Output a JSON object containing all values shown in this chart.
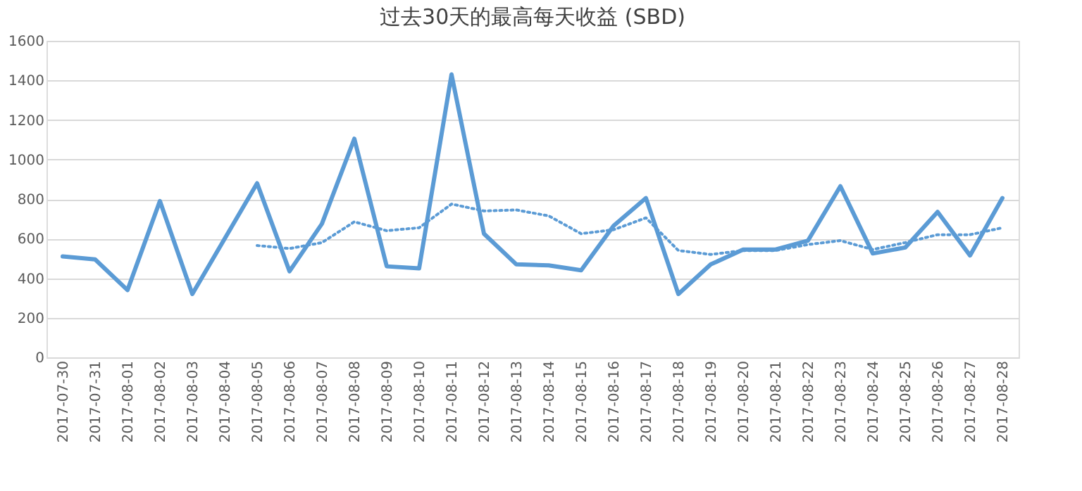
{
  "chart_data": {
    "type": "line",
    "title": "过去30天的最高每天收益 (SBD)",
    "categories": [
      "2017-07-30",
      "2017-07-31",
      "2017-08-01",
      "2017-08-02",
      "2017-08-03",
      "2017-08-04",
      "2017-08-05",
      "2017-08-06",
      "2017-08-07",
      "2017-08-08",
      "2017-08-09",
      "2017-08-10",
      "2017-08-11",
      "2017-08-12",
      "2017-08-13",
      "2017-08-14",
      "2017-08-15",
      "2017-08-16",
      "2017-08-17",
      "2017-08-18",
      "2017-08-19",
      "2017-08-20",
      "2017-08-21",
      "2017-08-22",
      "2017-08-23",
      "2017-08-24",
      "2017-08-25",
      "2017-08-26",
      "2017-08-27",
      "2017-08-28"
    ],
    "series": [
      {
        "color": "#5b9bd5",
        "line_style": "solid",
        "values": [
          510,
          495,
          340,
          790,
          320,
          600,
          880,
          435,
          675,
          1105,
          460,
          450,
          1430,
          625,
          470,
          465,
          440,
          665,
          805,
          320,
          470,
          545,
          545,
          590,
          865,
          525,
          555,
          735,
          515,
          805
        ]
      },
      {
        "color": "#5b9bd5",
        "line_style": "dotted",
        "values": [
          null,
          null,
          null,
          null,
          null,
          null,
          565,
          550,
          580,
          685,
          640,
          655,
          775,
          740,
          745,
          715,
          625,
          645,
          705,
          540,
          520,
          540,
          540,
          570,
          590,
          545,
          580,
          620,
          620,
          655
        ]
      }
    ],
    "ylim": [
      0,
      1600
    ],
    "yticks": [
      0,
      200,
      400,
      600,
      800,
      1000,
      1200,
      1400,
      1600
    ],
    "grid": "y",
    "marker": "none"
  }
}
